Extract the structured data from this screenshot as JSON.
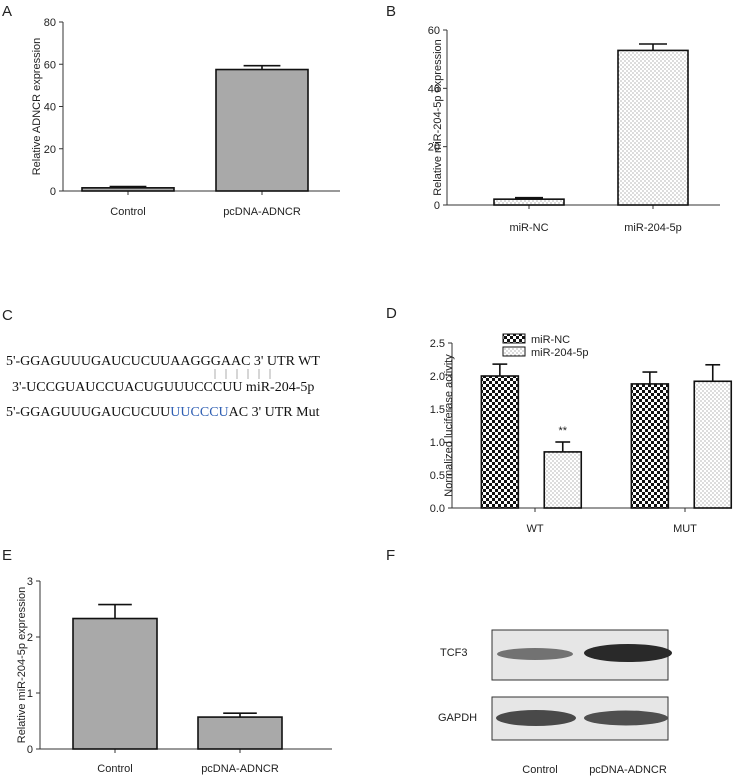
{
  "panel_labels": [
    "A",
    "B",
    "C",
    "D",
    "E",
    "F"
  ],
  "chart_data": [
    {
      "panel": "A",
      "type": "bar",
      "categories": [
        "Control",
        "pcDNA-ADNCR"
      ],
      "values": [
        1.5,
        57.5
      ],
      "errors": [
        0.6,
        1.8
      ],
      "ylabel": "Relative ADNCR expression",
      "xlabel": "",
      "ylim": [
        0,
        80
      ],
      "yticks": [
        0,
        20,
        40,
        60,
        80
      ],
      "fill": "#a9a9a9"
    },
    {
      "panel": "B",
      "type": "bar",
      "categories": [
        "miR-NC",
        "miR-204-5p"
      ],
      "values": [
        2.0,
        53.0
      ],
      "errors": [
        0.5,
        2.2
      ],
      "ylabel": "Relative miR-204-5p expression",
      "xlabel": "",
      "ylim": [
        0,
        60
      ],
      "yticks": [
        0,
        20,
        40,
        60
      ],
      "fill": "dots"
    },
    {
      "panel": "D",
      "type": "bar",
      "categories": [
        "WT",
        "MUT"
      ],
      "series": [
        {
          "name": "miR-NC",
          "values": [
            2.0,
            1.88
          ],
          "errors": [
            0.18,
            0.18
          ],
          "fill": "checker"
        },
        {
          "name": "miR-204-5p",
          "values": [
            0.85,
            1.92
          ],
          "errors": [
            0.15,
            0.25
          ],
          "fill": "dots"
        }
      ],
      "annotations": [
        {
          "category": "WT",
          "series": "miR-204-5p",
          "text": "**"
        }
      ],
      "ylabel": "Normalized luciferase activity",
      "xlabel": "",
      "ylim": [
        0,
        2.5
      ],
      "yticks": [
        0.0,
        0.5,
        1.0,
        1.5,
        2.0,
        2.5
      ],
      "legend": "top-left"
    },
    {
      "panel": "E",
      "type": "bar",
      "categories": [
        "Control",
        "pcDNA-ADNCR"
      ],
      "values": [
        2.33,
        0.57
      ],
      "errors": [
        0.25,
        0.07
      ],
      "ylabel": "Relative miR-204-5p expression",
      "xlabel": "",
      "ylim": [
        0,
        3
      ],
      "yticks": [
        0,
        1,
        2,
        3
      ],
      "fill": "#a9a9a9"
    }
  ],
  "sequences": {
    "line1": "5'-GGAGUUUGAUCUCUUAAGGGAAC 3' UTR WT",
    "line2": "3'-UCCGUAUCCUACUGUUUCCCUU miR-204-5p",
    "line3_pre": "5'-GGAGUUUGAUCUCUU",
    "line3_mut": "UUCCCU",
    "line3_post": "AC 3' UTR Mut"
  },
  "western_blot": {
    "bands": [
      "TCF3",
      "GAPDH"
    ],
    "lanes": [
      "Control",
      "pcDNA-ADNCR"
    ],
    "intensity": {
      "TCF3": [
        0.55,
        0.9
      ],
      "GAPDH": [
        0.75,
        0.72
      ]
    }
  }
}
